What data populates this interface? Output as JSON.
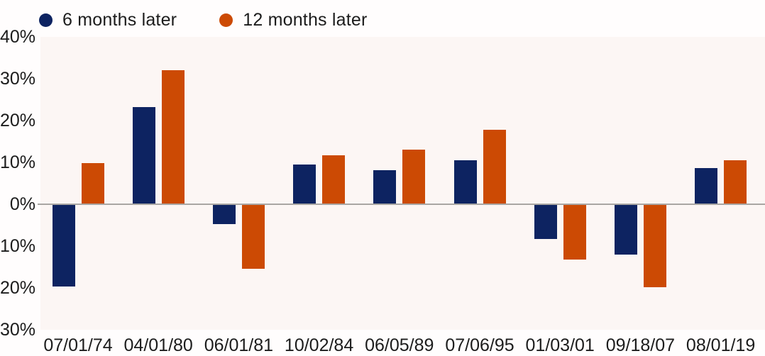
{
  "legend": {
    "items": [
      {
        "label": "6 months later",
        "color": "#0d2361"
      },
      {
        "label": "12 months later",
        "color": "#cc4a04"
      }
    ]
  },
  "chart_data": {
    "type": "bar",
    "title": "",
    "xlabel": "",
    "ylabel": "",
    "categories": [
      "07/01/74",
      "04/01/80",
      "06/01/81",
      "10/02/84",
      "06/05/89",
      "07/06/95",
      "01/03/01",
      "09/18/07",
      "08/01/19"
    ],
    "series": [
      {
        "name": "6 months later",
        "color": "#0d2361",
        "values": [
          -19.5,
          23.0,
          -4.6,
          9.4,
          7.9,
          10.4,
          -8.1,
          -11.9,
          8.4
        ]
      },
      {
        "name": "12 months later",
        "color": "#cc4a04",
        "values": [
          9.6,
          31.8,
          -15.3,
          11.5,
          12.8,
          17.6,
          -13.1,
          -19.6,
          10.4
        ]
      }
    ],
    "ylim": [
      -30,
      40
    ],
    "yticks": [
      {
        "value": 40,
        "label": "40%"
      },
      {
        "value": 30,
        "label": "30%"
      },
      {
        "value": 20,
        "label": "20%"
      },
      {
        "value": 10,
        "label": "10%"
      },
      {
        "value": 0,
        "label": "0%"
      },
      {
        "value": -10,
        "label": "-10%"
      },
      {
        "value": -20,
        "label": "-20%"
      },
      {
        "value": -30,
        "label": "-30%"
      }
    ],
    "grid": false,
    "legend_position": "top-left",
    "plot_background": "#fcf6f4",
    "zero_line_color": "#a9a6a3",
    "text_color": "#1c1c1c"
  }
}
